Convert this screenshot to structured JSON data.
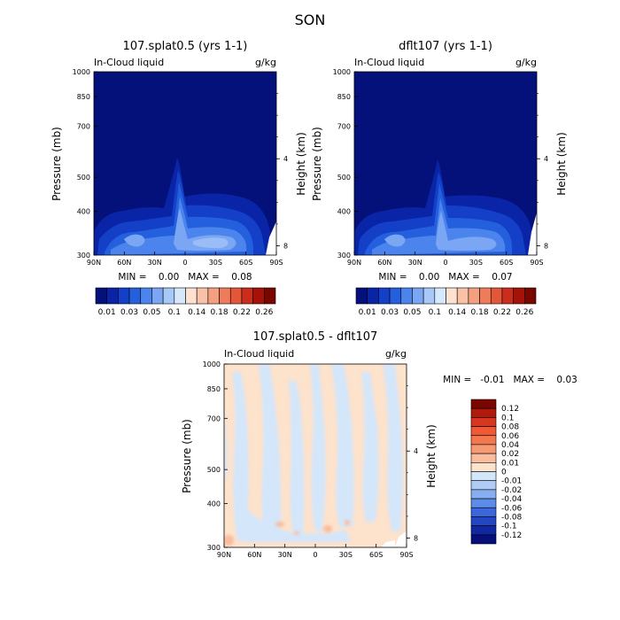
{
  "figure": {
    "title": "SON"
  },
  "chart_data": [
    {
      "type": "heatmap",
      "title": "107.splat0.5 (yrs 1-1)",
      "subtitle_left": "In-Cloud liquid",
      "subtitle_right": "g/kg",
      "xlabel": "",
      "ylabel": "Pressure (mb)",
      "ylabel_right": "Height (km)",
      "x_ticks": [
        "90N",
        "60N",
        "30N",
        "0",
        "30S",
        "60S",
        "90S"
      ],
      "y_ticks": [
        "300",
        "400",
        "500",
        "700",
        "850",
        "1000"
      ],
      "y_ticks_right": [
        "8",
        "4"
      ],
      "y_scale": "log",
      "ylim": [
        1000,
        300
      ],
      "min_max_label": "MIN =    0.00   MAX =    0.08",
      "min": 0.0,
      "max": 0.08,
      "grid": false
    },
    {
      "type": "heatmap",
      "title": "dflt107 (yrs 1-1)",
      "subtitle_left": "In-Cloud liquid",
      "subtitle_right": "g/kg",
      "xlabel": "",
      "ylabel": "Pressure (mb)",
      "ylabel_right": "Height (km)",
      "x_ticks": [
        "90N",
        "60N",
        "30N",
        "0",
        "30S",
        "60S",
        "90S"
      ],
      "y_ticks": [
        "300",
        "400",
        "500",
        "700",
        "850",
        "1000"
      ],
      "y_ticks_right": [
        "8",
        "4"
      ],
      "y_scale": "log",
      "ylim": [
        1000,
        300
      ],
      "min_max_label": "MIN =    0.00   MAX =    0.07",
      "min": 0.0,
      "max": 0.07,
      "grid": false
    },
    {
      "type": "heatmap",
      "title": "107.splat0.5 - dflt107",
      "subtitle_left": "In-Cloud liquid",
      "subtitle_right": "g/kg",
      "xlabel": "",
      "ylabel": "Pressure (mb)",
      "ylabel_right": "Height (km)",
      "x_ticks": [
        "90N",
        "60N",
        "30N",
        "0",
        "30S",
        "60S",
        "90S"
      ],
      "y_ticks": [
        "300",
        "400",
        "500",
        "700",
        "850",
        "1000"
      ],
      "y_ticks_right": [
        "8",
        "4"
      ],
      "y_scale": "log",
      "ylim": [
        1000,
        300
      ],
      "min_max_label": "MIN =   -0.01   MAX =    0.03",
      "min": -0.01,
      "max": 0.03,
      "grid": false
    }
  ],
  "colorbar_top": {
    "labels": [
      "0.01",
      "0.03",
      "0.05",
      "0.1",
      "0.14",
      "0.18",
      "0.22",
      "0.26"
    ],
    "colors": [
      "#05117a",
      "#0a24a8",
      "#1440c8",
      "#2460de",
      "#4c84ee",
      "#7aa6f4",
      "#a8c8f8",
      "#d6e8fc",
      "#fde2d2",
      "#f9c2a6",
      "#f4a080",
      "#ee7c5a",
      "#e45638",
      "#cc2c1c",
      "#a41208",
      "#7a0600"
    ]
  },
  "colorbar_diff": {
    "labels": [
      "0.12",
      "0.1",
      "0.08",
      "0.06",
      "0.04",
      "0.02",
      "0.01",
      "0",
      "-0.01",
      "-0.02",
      "-0.04",
      "-0.06",
      "-0.08",
      "-0.1",
      "-0.12"
    ],
    "colors": [
      "#7a0600",
      "#b01a0a",
      "#d93620",
      "#ee5a36",
      "#f3784e",
      "#f69a74",
      "#f9bc9c",
      "#fde2cc",
      "#d4e6fa",
      "#b0ccf4",
      "#86aef0",
      "#5c8ce8",
      "#3a68dc",
      "#2246c4",
      "#1028a0",
      "#060f7a"
    ]
  }
}
